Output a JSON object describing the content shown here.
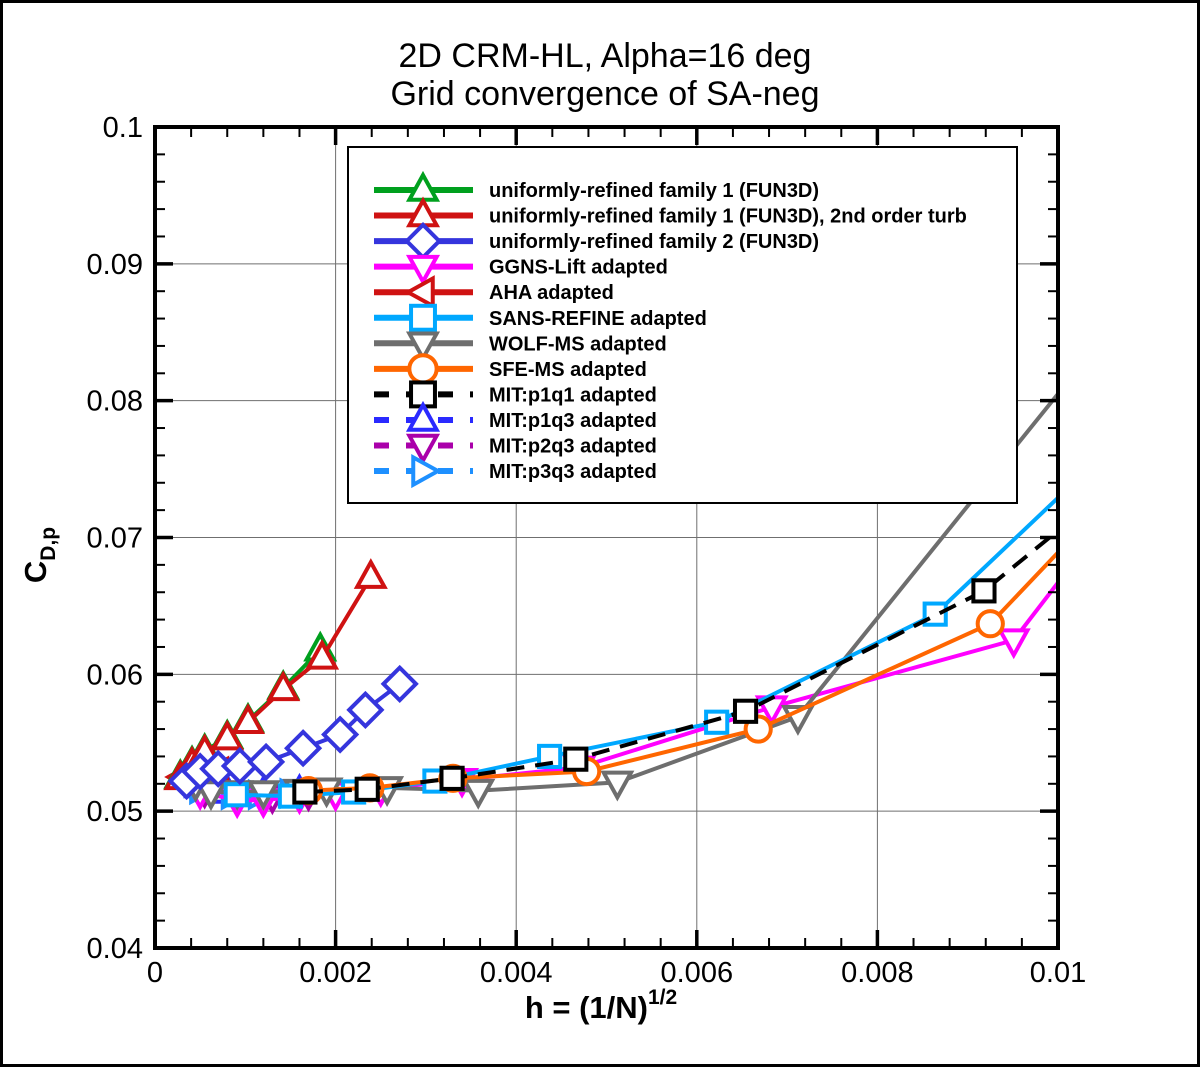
{
  "title": {
    "line1": "2D CRM-HL, Alpha=16 deg",
    "line2": "Grid convergence of SA-neg"
  },
  "axes": {
    "x": {
      "label_base": "h = (1/N)",
      "label_sup": "1/2",
      "min": 0,
      "max": 0.01,
      "major_ticks": [
        0,
        0.002,
        0.004,
        0.006,
        0.008,
        0.01
      ],
      "tick_labels": [
        "0",
        "0.002",
        "0.004",
        "0.006",
        "0.008",
        "0.01"
      ],
      "minor_step": 0.0004,
      "grid_lines": [
        0.002,
        0.004,
        0.006,
        0.008
      ]
    },
    "y": {
      "label_base": "C",
      "label_sub": "D,p",
      "min": 0.04,
      "max": 0.1,
      "major_ticks": [
        0.04,
        0.05,
        0.06,
        0.07,
        0.08,
        0.09,
        0.1
      ],
      "tick_labels": [
        "0.04",
        "0.05",
        "0.06",
        "0.07",
        "0.08",
        "0.09",
        "0.1"
      ],
      "minor_step": 0.002,
      "grid_lines": [
        0.05,
        0.06,
        0.07,
        0.08,
        0.09
      ]
    }
  },
  "style": {
    "grid_color": "#6f6f6f",
    "axis_color": "#000000",
    "background": "#ffffff",
    "legend_position": "top-center-inside"
  },
  "chart_data": {
    "type": "line",
    "xlabel": "h = (1/N)^1/2",
    "ylabel": "C_D,p",
    "xlim": [
      0,
      0.01
    ],
    "ylim": [
      0.04,
      0.1
    ],
    "grid": true,
    "series": [
      {
        "name": "uniformly-refined family 1 (FUN3D)",
        "color": "#00a01e",
        "marker": "triangle-up",
        "dash": "none",
        "x": [
          0.00028,
          0.00041,
          0.00055,
          0.0008,
          0.00103,
          0.00142,
          0.00183
        ],
        "y": [
          0.0525,
          0.0535,
          0.0544,
          0.0554,
          0.0566,
          0.059,
          0.0618
        ]
      },
      {
        "name": "uniformly-refined family 1 (FUN3D), 2nd order turb",
        "color": "#cf1212",
        "marker": "triangle-up",
        "dash": "none",
        "x": [
          0.00028,
          0.00041,
          0.00055,
          0.0008,
          0.00103,
          0.00142,
          0.00185,
          0.00239
        ],
        "y": [
          0.0524,
          0.0534,
          0.0543,
          0.0553,
          0.0565,
          0.0589,
          0.0612,
          0.0671
        ]
      },
      {
        "name": "uniformly-refined family 2 (FUN3D)",
        "color": "#3535dd",
        "marker": "diamond",
        "dash": "none",
        "x": [
          0.00035,
          0.0005,
          0.0007,
          0.00094,
          0.00123,
          0.00164,
          0.00205,
          0.00233,
          0.00271
        ],
        "y": [
          0.0522,
          0.0529,
          0.0531,
          0.0533,
          0.0536,
          0.0546,
          0.0556,
          0.0574,
          0.0593
        ]
      },
      {
        "name": "GGNS-Lift adapted",
        "color": "#ff00ff",
        "marker": "triangle-down",
        "dash": "none",
        "x": [
          0.0005,
          0.00091,
          0.0012,
          0.0016,
          0.002,
          0.0025,
          0.0034,
          0.0047,
          0.00683,
          0.00951
        ],
        "y": [
          0.0514,
          0.0508,
          0.0508,
          0.0511,
          0.0513,
          0.0516,
          0.0523,
          0.0532,
          0.0576,
          0.0625
        ],
        "tail": [
          0.01,
          0.0667
        ]
      },
      {
        "name": "AHA adapted",
        "color": "#cf1212",
        "marker": "triangle-left",
        "dash": "none",
        "x": [
          0.0003,
          0.0005,
          0.0007
        ],
        "y": [
          0.0525,
          0.0527,
          0.0529
        ]
      },
      {
        "name": "SANS-REFINE adapted",
        "color": "#00a8ff",
        "marker": "square",
        "dash": "none",
        "x": [
          0.0009,
          0.0015,
          0.0022,
          0.0031,
          0.00437,
          0.00622,
          0.00864
        ],
        "y": [
          0.0512,
          0.0511,
          0.0514,
          0.0522,
          0.054,
          0.0565,
          0.0644
        ],
        "tail": [
          0.01,
          0.0729
        ]
      },
      {
        "name": "WOLF-MS adapted",
        "color": "#6e6e6e",
        "marker": "triangle-down",
        "dash": "none",
        "x": [
          0.00045,
          0.00062,
          0.00091,
          0.0012,
          0.0016,
          0.0019,
          0.00257,
          0.00358,
          0.00512,
          0.00712
        ],
        "y": [
          0.052,
          0.0514,
          0.0514,
          0.0514,
          0.0515,
          0.0516,
          0.0517,
          0.0515,
          0.0521,
          0.0569
        ],
        "tail": [
          0.01,
          0.0805
        ]
      },
      {
        "name": "SFE-MS adapted",
        "color": "#ff6600",
        "marker": "circle",
        "dash": "none",
        "x": [
          0.0017,
          0.00238,
          0.0033,
          0.00478,
          0.00668,
          0.00925
        ],
        "y": [
          0.0515,
          0.0517,
          0.0524,
          0.0529,
          0.056,
          0.0637
        ],
        "tail": [
          0.01,
          0.0689
        ]
      },
      {
        "name": "MIT:p1q1 adapted",
        "color": "#000000",
        "marker": "square",
        "dash": "18 11",
        "x": [
          0.00166,
          0.00235,
          0.00329,
          0.00466,
          0.00654,
          0.00918
        ],
        "y": [
          0.0514,
          0.0516,
          0.0524,
          0.0538,
          0.0573,
          0.0661
        ],
        "tail": [
          0.01,
          0.0705
        ]
      },
      {
        "name": "MIT:p1q3 adapted",
        "color": "#2a2aff",
        "marker": "triangle-up",
        "dash": "13 9",
        "x": [
          0.0005,
          0.0008,
          0.0012,
          0.0016
        ],
        "y": [
          0.0518,
          0.0514,
          0.0513,
          0.0514
        ]
      },
      {
        "name": "MIT:p2q3 adapted",
        "color": "#aa00aa",
        "marker": "triangle-down",
        "dash": "13 9",
        "x": [
          0.00055,
          0.0009,
          0.0013,
          0.0017
        ],
        "y": [
          0.0515,
          0.0511,
          0.0511,
          0.0513
        ]
      },
      {
        "name": "MIT:p3q3 adapted",
        "color": "#1e90ff",
        "marker": "triangle-right",
        "dash": "13 9",
        "x": [
          0.0005,
          0.00085,
          0.00115,
          0.0015
        ],
        "y": [
          0.0516,
          0.0512,
          0.0512,
          0.0513
        ]
      }
    ],
    "draw_order": [
      9,
      10,
      11,
      4,
      3,
      6,
      5,
      7,
      0,
      1,
      2,
      8
    ]
  },
  "legend": {
    "border_color": "#000000",
    "background": "#ffffff"
  }
}
